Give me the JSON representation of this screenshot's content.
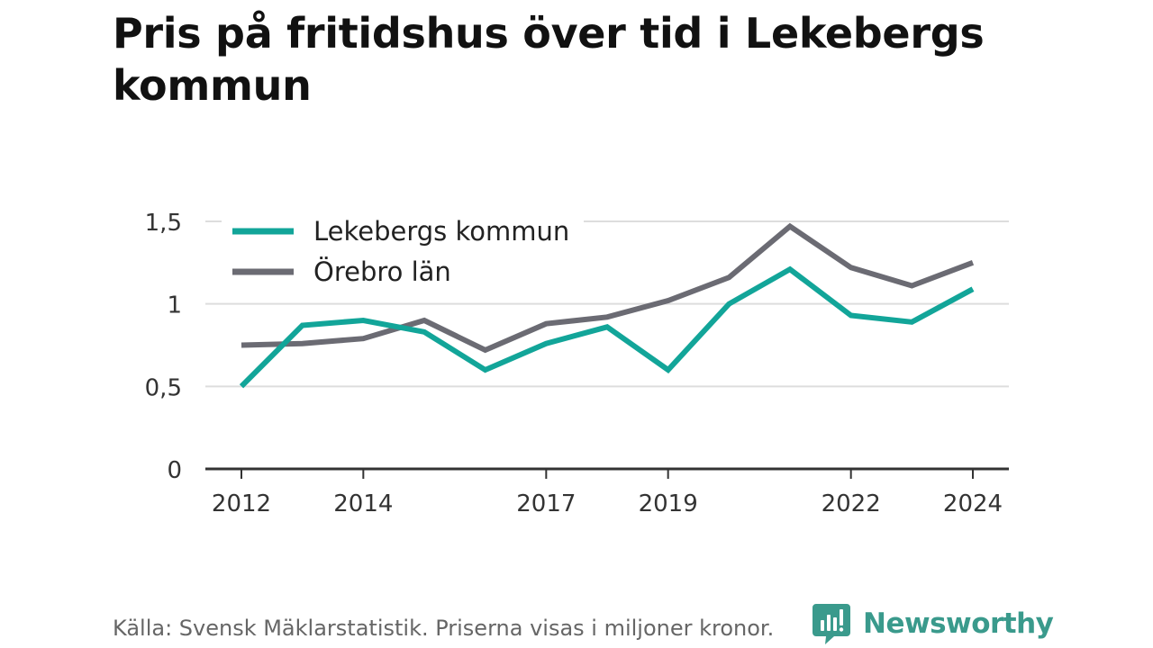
{
  "title": "Pris på fritidshus över tid i Lekebergs kommun",
  "footer": {
    "source": "Källa: Svensk Mäklarstatistik. Priserna visas i miljoner kronor.",
    "brand": "Newsworthy"
  },
  "colors": {
    "series_primary": "#12a599",
    "series_secondary": "#6b6b73",
    "grid": "#dddddd",
    "axis": "#333333",
    "brand": "#3a9a8c"
  },
  "chart_data": {
    "type": "line",
    "title": "Pris på fritidshus över tid i Lekebergs kommun",
    "xlabel": "",
    "ylabel": "",
    "x": [
      2012,
      2013,
      2014,
      2015,
      2016,
      2017,
      2018,
      2019,
      2020,
      2021,
      2022,
      2023,
      2024
    ],
    "x_tick_labels": [
      "2012",
      "2014",
      "2017",
      "2019",
      "2022",
      "2024"
    ],
    "x_tick_values": [
      2012,
      2014,
      2017,
      2019,
      2022,
      2024
    ],
    "y_tick_labels": [
      "0",
      "0,5",
      "1",
      "1,5"
    ],
    "y_tick_values": [
      0,
      0.5,
      1,
      1.5
    ],
    "ylim": [
      0,
      1.5
    ],
    "grid": true,
    "legend_position": "top-left",
    "series": [
      {
        "name": "Lekebergs kommun",
        "values": [
          0.5,
          0.87,
          0.9,
          0.83,
          0.6,
          0.76,
          0.86,
          0.6,
          1.0,
          1.21,
          0.93,
          0.89,
          1.09
        ],
        "color": "#12a599"
      },
      {
        "name": "Örebro län",
        "values": [
          0.75,
          0.76,
          0.79,
          0.9,
          0.72,
          0.88,
          0.92,
          1.02,
          1.16,
          1.47,
          1.22,
          1.11,
          1.25
        ],
        "color": "#6b6b73"
      }
    ]
  }
}
